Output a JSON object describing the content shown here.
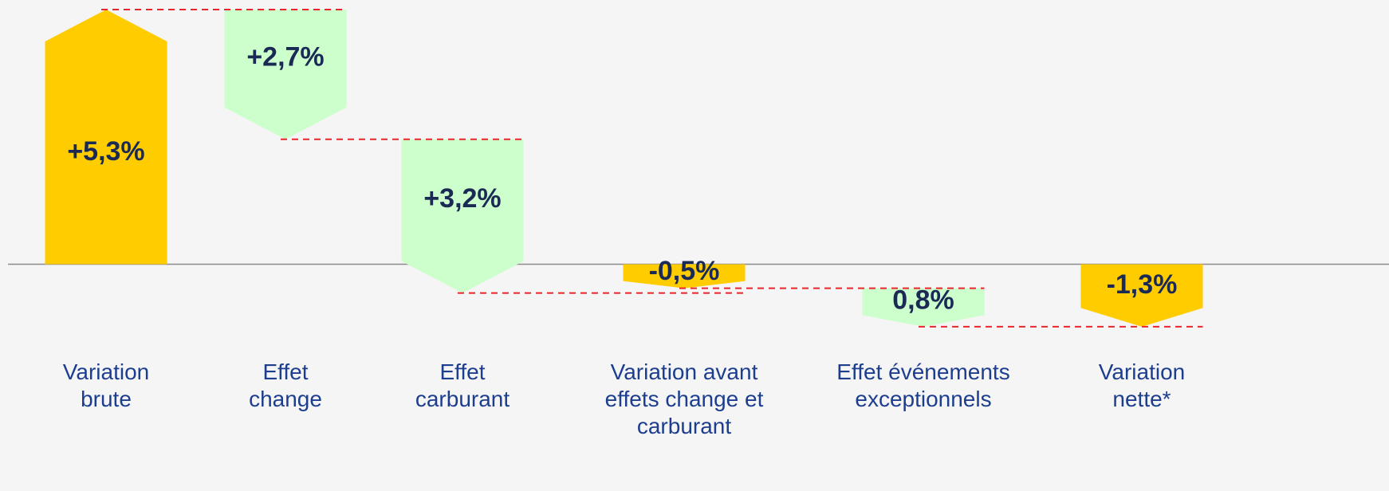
{
  "chart_data": {
    "type": "waterfall",
    "categories": [
      "Variation\nbrute",
      "Effet\nchange",
      "Effet\ncarburant",
      "Variation avant\neffets change et\ncarburant",
      "Effet événements\nexceptionnels",
      "Variation\nnette*"
    ],
    "values": [
      5.3,
      2.7,
      3.2,
      -0.5,
      0.8,
      -1.3
    ],
    "value_labels": [
      "+5,3%",
      "+2,7%",
      "+3,2%",
      "-0,5%",
      "0,8%",
      "-1,3%"
    ],
    "bar_kinds": [
      "total",
      "decrease",
      "decrease",
      "total",
      "decrease",
      "total"
    ],
    "total_color": "#ffcc00",
    "step_color": "#ccffcc",
    "connector_color": "#e8262b",
    "ylim": [
      -4.72,
      5.5
    ]
  }
}
